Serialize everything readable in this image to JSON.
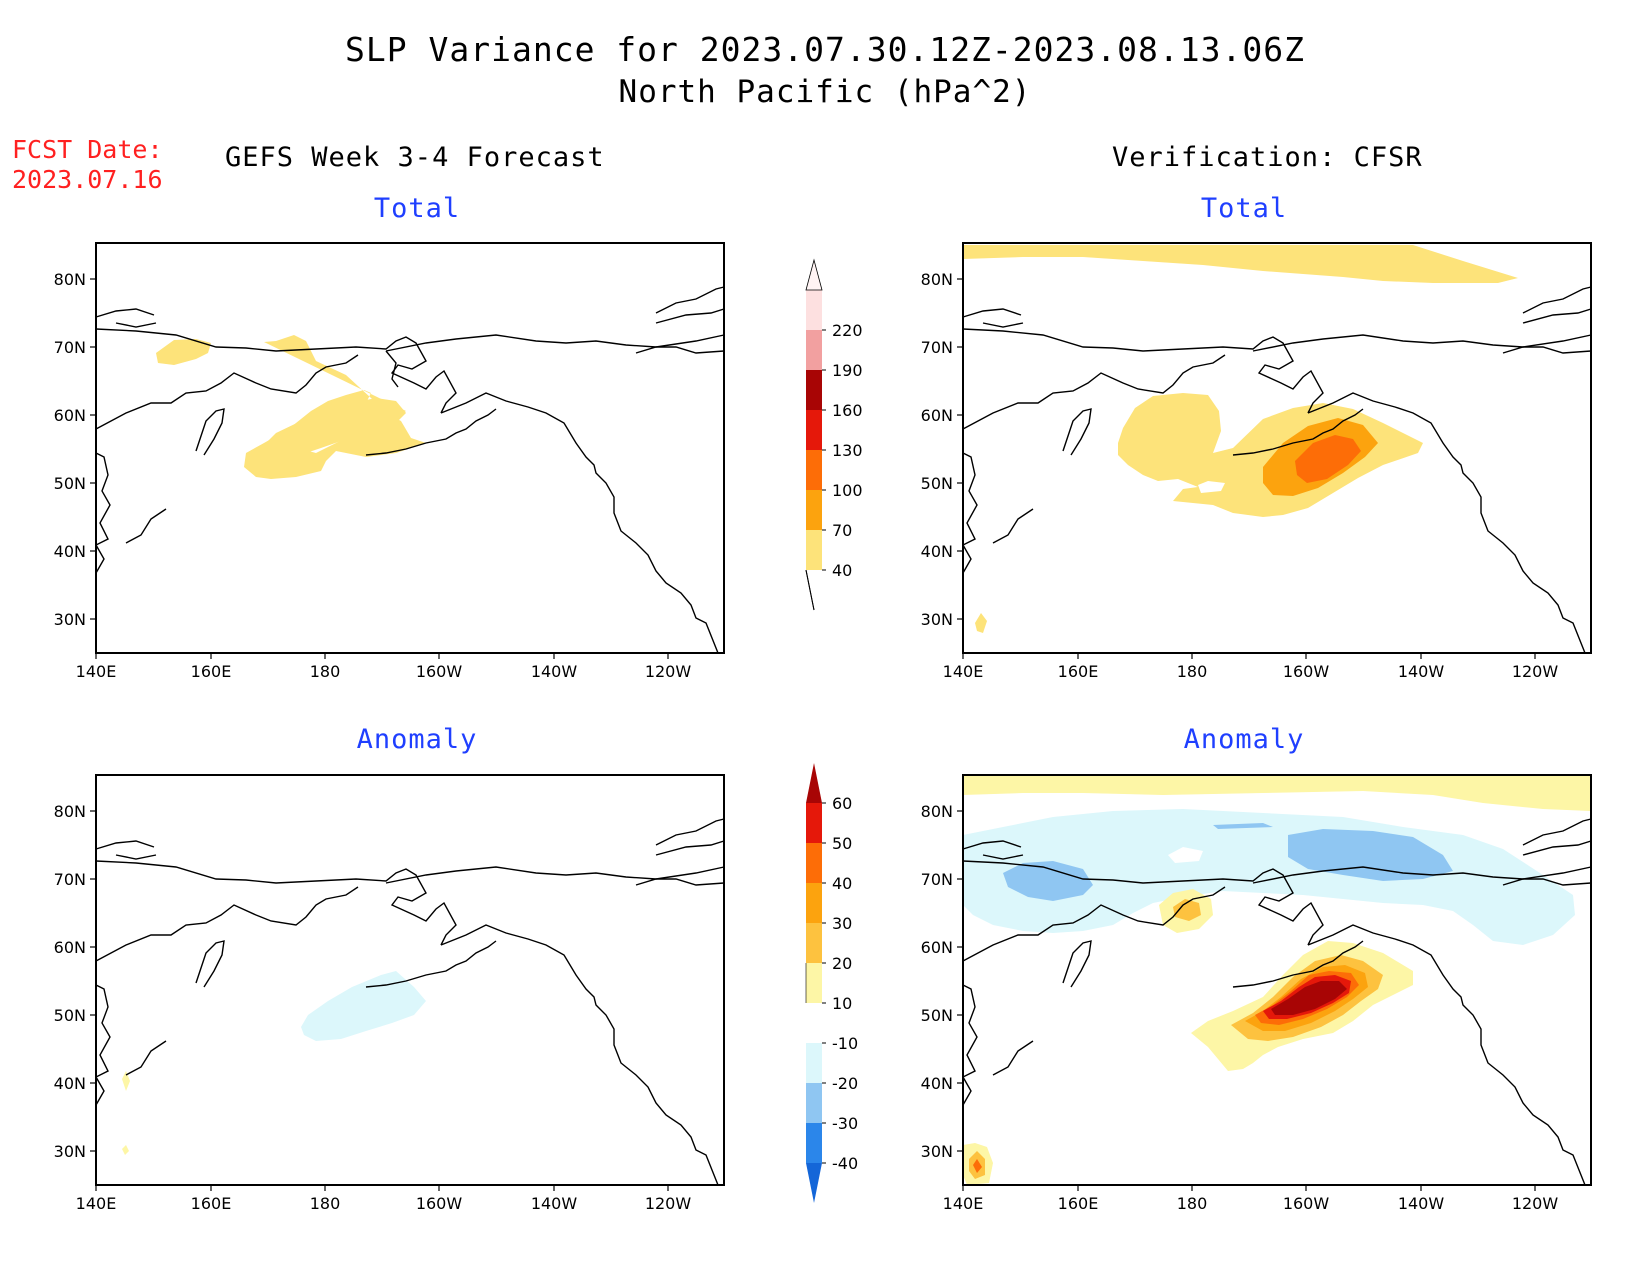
{
  "header": {
    "title": "SLP Variance for 2023.07.30.12Z-2023.08.13.06Z",
    "subtitle": "North Pacific (hPa^2)",
    "fcst_date_label": "FCST Date:",
    "fcst_date_value": "2023.07.16"
  },
  "columns": {
    "left": "GEFS Week 3-4 Forecast",
    "right": "Verification: CFSR"
  },
  "panels": [
    {
      "id": "gefs-total",
      "title": "Total"
    },
    {
      "id": "cfsr-total",
      "title": "Total"
    },
    {
      "id": "gefs-anomaly",
      "title": "Anomaly"
    },
    {
      "id": "cfsr-anomaly",
      "title": "Anomaly"
    }
  ],
  "axes": {
    "lat_ticks": [
      "80N",
      "70N",
      "60N",
      "50N",
      "40N",
      "30N"
    ],
    "lon_ticks": [
      "140E",
      "160E",
      "180",
      "160W",
      "140W",
      "120W"
    ]
  },
  "colorbars": {
    "total": {
      "labels": [
        "40",
        "70",
        "100",
        "130",
        "160",
        "190",
        "220"
      ],
      "colors": [
        "#fde37a",
        "#fca30e",
        "#fd6d07",
        "#e5180a",
        "#a80505",
        "#f2a0a0",
        "#fde0e0"
      ]
    },
    "anomaly": {
      "labels": [
        "-40",
        "-30",
        "-20",
        "-10",
        "10",
        "20",
        "30",
        "40",
        "50",
        "60"
      ],
      "colors": [
        "#1466d8",
        "#2b86ea",
        "#8fc6f2",
        "#dcf7fb",
        "#ffffff",
        "#fdf6a6",
        "#fdc23f",
        "#fca30e",
        "#fd6d07",
        "#e5180a",
        "#a80505"
      ]
    }
  },
  "colors": {
    "title_red": "#ff2020",
    "panel_title_blue": "#1f3fff"
  }
}
